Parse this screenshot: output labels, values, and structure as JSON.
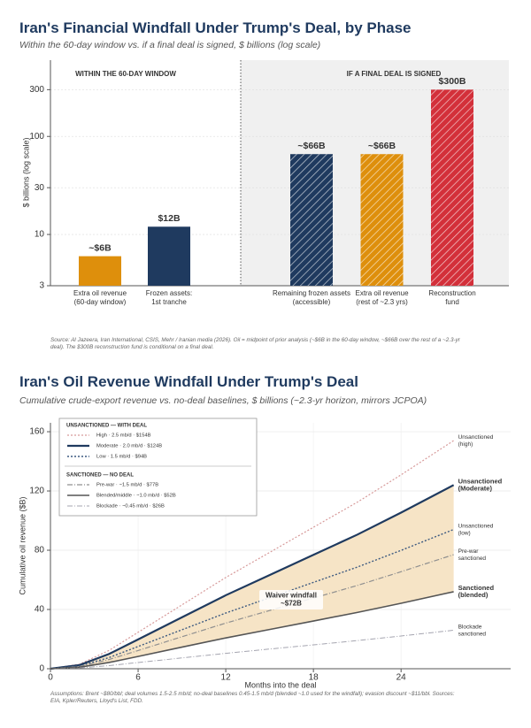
{
  "chart_data": [
    {
      "type": "bar",
      "title": "Iran's Financial Windfall Under Trump's Deal, by Phase",
      "subtitle": "Within the 60-day window vs. if a final deal is signed, $ billions (log scale)",
      "y_label": "$ billions (log scale)",
      "panels": [
        "WITHIN THE 60-DAY WINDOW",
        "IF A FINAL DEAL IS SIGNED"
      ],
      "categories": [
        "Extra oil revenue\n(60-day window)",
        "Frozen assets:\n1st tranche",
        "Remaining frozen assets\n(accessible)",
        "Extra oil revenue\n(rest of ~2.3 yrs)",
        "Reconstruction\nfund"
      ],
      "values": [
        6,
        12,
        66,
        66,
        300
      ],
      "value_labels": [
        "~$6B",
        "$12B",
        "~$66B",
        "~$66B",
        "$300B"
      ],
      "colors": [
        "#de8f0c",
        "#1f3a5f",
        "#1f3a5f",
        "#de8f0c",
        "#d3303a"
      ],
      "hatch": [
        false,
        false,
        true,
        true,
        true
      ],
      "log_scale": true,
      "ylim": [
        3,
        600
      ],
      "yticks": [
        3,
        10,
        30,
        100,
        300
      ],
      "grid": true,
      "source": "Source: Al Jazeera, Iran International, CSIS, Mehr / Iranian media (2026). Oil = midpoint of prior analysis (~$6B in the 60-day window, ~$66B over the rest of a ~2.3-yr deal). The $300B reconstruction fund is conditional on a final deal."
    },
    {
      "type": "line",
      "title": "Iran's Oil Revenue Windfall Under Trump's Deal",
      "subtitle": "Cumulative crude-export revenue vs. no-deal baselines, $ billions (~2.3-yr horizon, mirrors JCPOA)",
      "x_label": "Months into the deal",
      "y_label": "Cumulative oil revenue ($B)",
      "x": [
        0,
        2,
        4,
        6,
        9,
        12,
        15,
        18,
        21,
        24,
        27.6
      ],
      "legend_groups": [
        "UNSANCTIONED — WITH DEAL",
        "SANCTIONED — NO DEAL"
      ],
      "series": [
        {
          "name": "High · 2.5 mb/d · $154B",
          "end_label": "Unsanctioned\n(high)",
          "color": "#d79a9a",
          "dash": "2,2",
          "width": 1.2,
          "values": [
            0,
            3.1,
            12.3,
            24.6,
            43.1,
            61.6,
            78.5,
            95.5,
            112.4,
            130.9,
            154
          ]
        },
        {
          "name": "Moderate · 2.0 mb/d · $124B",
          "end_label": "Unsanctioned\n(Moderate)",
          "color": "#1f3a5f",
          "dash": "none",
          "width": 2.2,
          "values": [
            0,
            2.5,
            9.9,
            19.8,
            34.7,
            49.6,
            63.2,
            76.9,
            90.5,
            105.4,
            124
          ]
        },
        {
          "name": "Low · 1.5 mb/d · $94B",
          "end_label": "Unsanctioned\n(low)",
          "color": "#3d5a80",
          "dash": "2,2",
          "width": 1.4,
          "values": [
            0,
            1.9,
            7.5,
            15.0,
            26.3,
            37.6,
            47.9,
            58.3,
            68.6,
            79.9,
            94
          ]
        },
        {
          "name": "Pre-war · ~1.5 mb/d · $77B",
          "end_label": "Pre-war\nsanctioned",
          "color": "#8f8f8f",
          "dash": "6,2,1,2",
          "width": 1.2,
          "values": [
            0,
            1.5,
            6.2,
            12.3,
            21.6,
            30.8,
            39.3,
            47.7,
            56.2,
            65.5,
            77
          ]
        },
        {
          "name": "Blended/middle · ~1.0 mb/d · $52B",
          "end_label": "Sanctioned\n(blended)",
          "color": "#555555",
          "dash": "none",
          "width": 1.6,
          "values": [
            0,
            1.0,
            4.2,
            8.3,
            14.6,
            20.8,
            26.5,
            32.2,
            38.0,
            44.2,
            52
          ]
        },
        {
          "name": "Blockade · ~0.45 mb/d · $26B",
          "end_label": "Blockade\nsanctioned",
          "color": "#a5a5b0",
          "dash": "6,2,1,2",
          "width": 1.0,
          "values": [
            0,
            0.5,
            2.1,
            4.2,
            7.3,
            10.4,
            13.3,
            16.1,
            19.0,
            22.1,
            26
          ]
        }
      ],
      "band_color": "#f6e4c6",
      "annotation": "Waiver windfall\n~$72B",
      "xlim": [
        0,
        31.5
      ],
      "xticks": [
        0,
        6,
        12,
        18,
        24
      ],
      "ylim": [
        0,
        166
      ],
      "yticks": [
        0,
        40,
        80,
        120,
        160
      ],
      "grid": true,
      "source": "Assumptions: Brent ~$80/bbl; deal volumes 1.5-2.5 mb/d; no-deal baselines 0.45-1.5 mb/d (blended ~1.0 used for the windfall); evasion discount ~$11/bbl. Sources: EIA, Kpler/Reuters, Lloyd's List, FDD."
    }
  ]
}
